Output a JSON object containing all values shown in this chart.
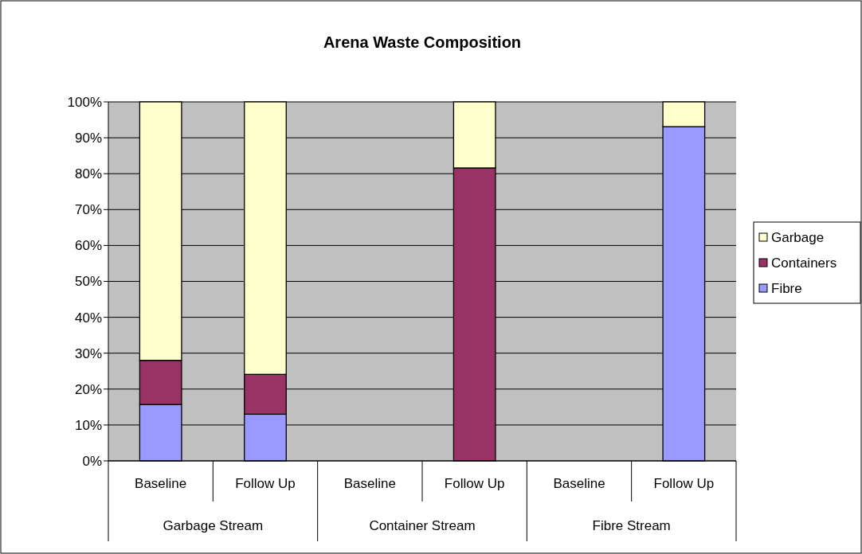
{
  "chart_data": {
    "type": "bar",
    "title": "Arena Waste Composition",
    "stacked": true,
    "categories": [
      "Baseline",
      "Follow Up",
      "Baseline",
      "Follow Up",
      "Baseline",
      "Follow Up"
    ],
    "annotations": [
      "Garbage Stream",
      "Container Stream",
      "Fibre Stream"
    ],
    "series": [
      {
        "name": "Fibre",
        "color": "#9999ff",
        "values": [
          15.7,
          13.0,
          null,
          null,
          null,
          93.1
        ]
      },
      {
        "name": "Containers",
        "color": "#993366",
        "values": [
          12.3,
          11.1,
          null,
          81.6,
          null,
          null
        ]
      },
      {
        "name": "Garbage",
        "color": "#ffffcc",
        "values": [
          72.0,
          75.9,
          null,
          18.4,
          null,
          6.9
        ]
      }
    ],
    "ylim": [
      0,
      100
    ],
    "yticks": [
      {
        "value": 0,
        "label": "0%"
      },
      {
        "value": 10,
        "label": "10%"
      },
      {
        "value": 20,
        "label": "20%"
      },
      {
        "value": 30,
        "label": "30%"
      },
      {
        "value": 40,
        "label": "40%"
      },
      {
        "value": 50,
        "label": "50%"
      },
      {
        "value": 60,
        "label": "60%"
      },
      {
        "value": 70,
        "label": "70%"
      },
      {
        "value": 80,
        "label": "80%"
      },
      {
        "value": 90,
        "label": "90%"
      },
      {
        "value": 100,
        "label": "100%"
      }
    ],
    "grid": "y",
    "legend": "right"
  }
}
